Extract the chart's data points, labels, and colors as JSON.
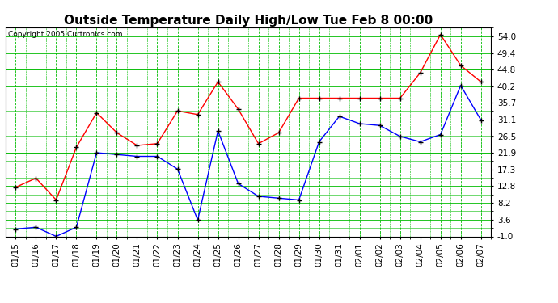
{
  "title": "Outside Temperature Daily High/Low Tue Feb 8 00:00",
  "copyright": "Copyright 2005 Curtronics.com",
  "x_labels": [
    "01/15",
    "01/16",
    "01/17",
    "01/18",
    "01/19",
    "01/20",
    "01/21",
    "01/22",
    "01/23",
    "01/24",
    "01/25",
    "01/26",
    "01/27",
    "01/28",
    "01/29",
    "01/30",
    "01/31",
    "02/01",
    "02/02",
    "02/03",
    "02/04",
    "02/05",
    "02/06",
    "02/07"
  ],
  "high_values": [
    12.5,
    15.0,
    9.0,
    23.5,
    33.0,
    27.5,
    24.0,
    24.5,
    33.5,
    32.5,
    41.5,
    34.0,
    24.5,
    27.5,
    37.0,
    37.0,
    37.0,
    37.0,
    37.0,
    37.0,
    44.0,
    54.5,
    46.0,
    41.5
  ],
  "low_values": [
    1.0,
    1.5,
    -1.0,
    1.5,
    22.0,
    21.5,
    21.0,
    21.0,
    17.5,
    3.5,
    28.0,
    13.5,
    10.0,
    9.5,
    9.0,
    25.0,
    32.0,
    30.0,
    29.5,
    26.5,
    25.0,
    27.0,
    40.5,
    31.0
  ],
  "high_color": "#ff0000",
  "low_color": "#0000ff",
  "marker_color": "#000000",
  "grid_color": "#00bb00",
  "bg_color": "#ffffff",
  "yticks": [
    -1.0,
    3.6,
    8.2,
    12.8,
    17.3,
    21.9,
    26.5,
    31.1,
    35.7,
    40.2,
    44.8,
    49.4,
    54.0
  ],
  "ymin": -1.0,
  "ymax": 56.5,
  "title_fontsize": 11,
  "tick_fontsize": 7.5,
  "copyright_fontsize": 6.5
}
